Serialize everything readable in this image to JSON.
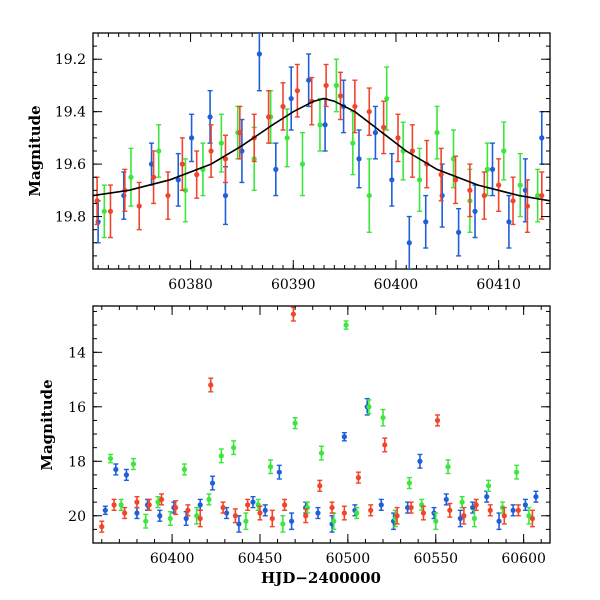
{
  "chart_data": [
    {
      "type": "scatter",
      "title": "",
      "xlabel": "",
      "ylabel": "Magnitude",
      "xlim": [
        60370.5,
        60415
      ],
      "ylim": [
        19.1,
        20.0
      ],
      "y_inverted": true,
      "x_ticks": [
        60380,
        60390,
        60400,
        60410
      ],
      "x_tick_labels": [
        "60380",
        "60390",
        "60400",
        "60410"
      ],
      "y_ticks": [
        19.2,
        19.4,
        19.6,
        19.8
      ],
      "y_tick_labels": [
        "19.2",
        "19.4",
        "19.6",
        "19.8"
      ],
      "grid": false,
      "legend": "none",
      "fit_curve": {
        "color": "#000000",
        "peak_x": 60393,
        "peak_mag": 19.35,
        "baseline_mag": 19.77,
        "x": [
          60370.5,
          60374,
          60378,
          60382,
          60385,
          60388,
          60390,
          60392,
          60393,
          60394,
          60396,
          60398,
          60401,
          60404,
          60408,
          60412,
          60415
        ],
        "y": [
          19.72,
          19.7,
          19.66,
          19.6,
          19.53,
          19.45,
          19.4,
          19.36,
          19.35,
          19.36,
          19.4,
          19.46,
          19.55,
          19.62,
          19.68,
          19.72,
          19.74
        ]
      },
      "series": [
        {
          "color": "#1f5fd8",
          "x": [
            60371.0,
            60373.5,
            60376.2,
            60378.8,
            60380.1,
            60381.9,
            60383.4,
            60385.0,
            60386.7,
            60388.3,
            60389.8,
            60391.5,
            60393.1,
            60394.9,
            60396.4,
            60398.0,
            60399.6,
            60401.3,
            60402.9,
            60404.5,
            60406.1,
            60407.7,
            60409.4,
            60411.0,
            60412.6,
            60414.2
          ],
          "y": [
            19.82,
            19.72,
            19.6,
            19.66,
            19.5,
            19.42,
            19.72,
            19.55,
            19.18,
            19.62,
            19.35,
            19.28,
            19.45,
            19.38,
            19.58,
            19.48,
            19.66,
            19.9,
            19.82,
            19.72,
            19.86,
            19.78,
            19.62,
            19.82,
            19.7,
            19.5
          ],
          "err": [
            0.08,
            0.09,
            0.08,
            0.1,
            0.09,
            0.1,
            0.11,
            0.12,
            0.14,
            0.1,
            0.12,
            0.1,
            0.1,
            0.1,
            0.11,
            0.1,
            0.1,
            0.1,
            0.1,
            0.12,
            0.09,
            0.1,
            0.1,
            0.1,
            0.12,
            0.1
          ]
        },
        {
          "color": "#3ce63c",
          "x": [
            60371.6,
            60374.2,
            60376.9,
            60379.5,
            60381.2,
            60383.0,
            60384.6,
            60386.2,
            60387.8,
            60389.4,
            60390.9,
            60392.6,
            60394.2,
            60395.8,
            60397.4,
            60399.1,
            60400.7,
            60402.3,
            60404.0,
            60405.6,
            60407.2,
            60408.9,
            60410.5,
            60412.1,
            60413.8
          ],
          "y": [
            19.78,
            19.65,
            19.55,
            19.7,
            19.62,
            19.52,
            19.48,
            19.58,
            19.42,
            19.5,
            19.6,
            19.45,
            19.3,
            19.52,
            19.72,
            19.35,
            19.55,
            19.66,
            19.48,
            19.58,
            19.74,
            19.62,
            19.55,
            19.68,
            19.72
          ],
          "err": [
            0.1,
            0.11,
            0.1,
            0.12,
            0.1,
            0.11,
            0.1,
            0.12,
            0.1,
            0.11,
            0.12,
            0.1,
            0.1,
            0.12,
            0.14,
            0.12,
            0.11,
            0.12,
            0.1,
            0.11,
            0.12,
            0.1,
            0.11,
            0.12,
            0.1
          ]
        },
        {
          "color": "#f0452a",
          "x": [
            60370.9,
            60372.2,
            60373.6,
            60375.0,
            60376.4,
            60377.8,
            60379.2,
            60380.6,
            60382.0,
            60383.4,
            60384.8,
            60386.2,
            60387.6,
            60389.0,
            60390.4,
            60391.8,
            60393.2,
            60394.6,
            60396.0,
            60397.4,
            60398.8,
            60400.2,
            60401.6,
            60403.0,
            60404.4,
            60405.8,
            60407.2,
            60408.6,
            60410.0,
            60411.4,
            60412.8,
            60414.2
          ],
          "y": [
            19.74,
            19.78,
            19.7,
            19.76,
            19.65,
            19.72,
            19.6,
            19.64,
            19.55,
            19.58,
            19.48,
            19.5,
            19.42,
            19.38,
            19.32,
            19.36,
            19.3,
            19.34,
            19.38,
            19.4,
            19.46,
            19.5,
            19.55,
            19.6,
            19.64,
            19.66,
            19.7,
            19.72,
            19.68,
            19.74,
            19.76,
            19.72
          ],
          "err": [
            0.09,
            0.1,
            0.08,
            0.09,
            0.1,
            0.09,
            0.1,
            0.09,
            0.1,
            0.09,
            0.1,
            0.09,
            0.1,
            0.09,
            0.1,
            0.09,
            0.08,
            0.09,
            0.1,
            0.09,
            0.1,
            0.09,
            0.1,
            0.09,
            0.1,
            0.09,
            0.1,
            0.09,
            0.1,
            0.09,
            0.1,
            0.09
          ]
        }
      ]
    },
    {
      "type": "scatter",
      "title": "",
      "xlabel": "HJD−2400000",
      "ylabel": "Magnitude",
      "xlim": [
        60355,
        60615
      ],
      "ylim": [
        12.3,
        21.0
      ],
      "y_inverted": true,
      "x_ticks": [
        60400,
        60450,
        60500,
        60550,
        60600
      ],
      "x_tick_labels": [
        "60400",
        "60450",
        "60500",
        "60550",
        "60600"
      ],
      "y_ticks": [
        14,
        16,
        18,
        20
      ],
      "y_tick_labels": [
        "14",
        "16",
        "18",
        "20"
      ],
      "grid": false,
      "legend": "none",
      "series": [
        {
          "color": "#1f5fd8",
          "x": [
            60362,
            60368,
            60374,
            60380,
            60386,
            60393,
            60401,
            60408,
            60416,
            60423,
            60431,
            60438,
            60446,
            60453,
            60461,
            60468,
            60476,
            60483,
            60491,
            60498,
            60504,
            60511,
            60519,
            60526,
            60534,
            60541,
            60549,
            60556,
            60564,
            60571,
            60579,
            60586,
            60594,
            60601,
            60607
          ],
          "y": [
            19.8,
            18.3,
            18.5,
            19.9,
            19.6,
            20.0,
            19.7,
            20.1,
            19.6,
            18.8,
            19.9,
            20.3,
            19.5,
            19.8,
            18.4,
            20.2,
            19.7,
            19.9,
            20.3,
            17.1,
            19.8,
            16.0,
            19.6,
            20.2,
            19.7,
            18.0,
            19.9,
            19.4,
            20.1,
            19.7,
            19.3,
            20.2,
            19.8,
            19.6,
            19.3
          ],
          "err": [
            0.15,
            0.2,
            0.2,
            0.2,
            0.2,
            0.2,
            0.2,
            0.25,
            0.2,
            0.25,
            0.2,
            0.3,
            0.2,
            0.2,
            0.25,
            0.3,
            0.2,
            0.2,
            0.3,
            0.15,
            0.2,
            0.3,
            0.2,
            0.3,
            0.2,
            0.25,
            0.2,
            0.2,
            0.3,
            0.2,
            0.2,
            0.3,
            0.2,
            0.2,
            0.2
          ]
        },
        {
          "color": "#3ce63c",
          "x": [
            60365,
            60371,
            60378,
            60385,
            60392,
            60399,
            60407,
            60414,
            60421,
            60428,
            60435,
            60442,
            60449,
            60456,
            60463,
            60470,
            60477,
            60485,
            60492,
            60499,
            60505,
            60512,
            60520,
            60527,
            60535,
            60542,
            60550,
            60557,
            60565,
            60572,
            60580,
            60588,
            60596,
            60603
          ],
          "y": [
            17.9,
            19.6,
            18.1,
            20.2,
            19.5,
            20.1,
            18.3,
            20.0,
            19.4,
            17.8,
            17.5,
            20.2,
            19.6,
            18.2,
            20.3,
            16.6,
            19.7,
            17.7,
            20.2,
            13.0,
            19.9,
            16.0,
            16.4,
            20.1,
            18.8,
            19.6,
            20.2,
            18.2,
            19.5,
            20.1,
            18.9,
            19.7,
            18.4,
            20.0
          ],
          "err": [
            0.15,
            0.2,
            0.2,
            0.25,
            0.2,
            0.25,
            0.2,
            0.3,
            0.2,
            0.25,
            0.25,
            0.3,
            0.2,
            0.25,
            0.3,
            0.2,
            0.2,
            0.25,
            0.3,
            0.15,
            0.2,
            0.25,
            0.3,
            0.3,
            0.2,
            0.2,
            0.3,
            0.25,
            0.2,
            0.3,
            0.2,
            0.2,
            0.25,
            0.3
          ]
        },
        {
          "color": "#f0452a",
          "x": [
            60360,
            60367,
            60373,
            60380,
            60387,
            60394,
            60402,
            60409,
            60416,
            60422,
            60429,
            60436,
            60443,
            60450,
            60457,
            60464,
            60469,
            60476,
            60484,
            60491,
            60498,
            60506,
            60513,
            60521,
            60528,
            60536,
            60543,
            60551,
            60558,
            60566,
            60573,
            60581,
            60589,
            60597,
            60605
          ],
          "y": [
            20.4,
            19.6,
            19.9,
            19.5,
            19.6,
            19.4,
            19.7,
            19.8,
            20.1,
            15.2,
            19.7,
            20.0,
            19.6,
            19.9,
            20.1,
            19.6,
            12.6,
            20.0,
            18.9,
            19.7,
            19.9,
            18.6,
            19.8,
            17.4,
            20.0,
            19.7,
            19.9,
            16.5,
            19.8,
            20.0,
            19.6,
            19.8,
            20.0,
            19.8,
            20.1
          ],
          "err": [
            0.2,
            0.2,
            0.2,
            0.2,
            0.2,
            0.2,
            0.25,
            0.2,
            0.3,
            0.25,
            0.2,
            0.25,
            0.2,
            0.25,
            0.3,
            0.2,
            0.25,
            0.25,
            0.2,
            0.2,
            0.25,
            0.2,
            0.2,
            0.25,
            0.3,
            0.2,
            0.25,
            0.2,
            0.25,
            0.3,
            0.2,
            0.2,
            0.3,
            0.2,
            0.3
          ]
        }
      ]
    }
  ]
}
